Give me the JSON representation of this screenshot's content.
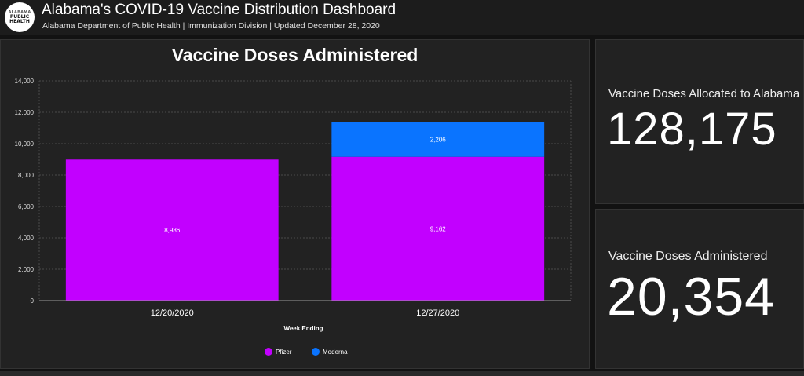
{
  "header": {
    "logo": {
      "line1": "ALABAMA",
      "line2": "PUBLIC",
      "line3": "HEALTH"
    },
    "title": "Alabama's COVID-19 Vaccine Distribution Dashboard",
    "subtitle": "Alabama Department of Public Health | Immunization Division | Updated December 28, 2020"
  },
  "chart_panel": {
    "title": "Vaccine Doses Administered"
  },
  "cards": [
    {
      "label": "Vaccine Doses Allocated to Alabama",
      "value": "128,175"
    },
    {
      "label": "Vaccine Doses Administered",
      "value": "20,354"
    }
  ],
  "chart_data": {
    "type": "bar",
    "stacked": true,
    "title": "Vaccine Doses Administered",
    "xlabel": "Week Ending",
    "ylabel": "",
    "ylim": [
      0,
      14000
    ],
    "yticks": [
      0,
      2000,
      4000,
      6000,
      8000,
      10000,
      12000,
      14000
    ],
    "ytick_labels": [
      "0",
      "2,000",
      "4,000",
      "6,000",
      "8,000",
      "10,000",
      "12,000",
      "14,000"
    ],
    "categories": [
      "12/20/2020",
      "12/27/2020"
    ],
    "series": [
      {
        "name": "Pfizer",
        "color": "#c200ff",
        "values": [
          8986,
          9162
        ],
        "labels": [
          "8,986",
          "9,162"
        ]
      },
      {
        "name": "Moderna",
        "color": "#0a74ff",
        "values": [
          0,
          2206
        ],
        "labels": [
          "",
          "2,206"
        ]
      }
    ],
    "grid": true,
    "legend": "bottom-center"
  }
}
